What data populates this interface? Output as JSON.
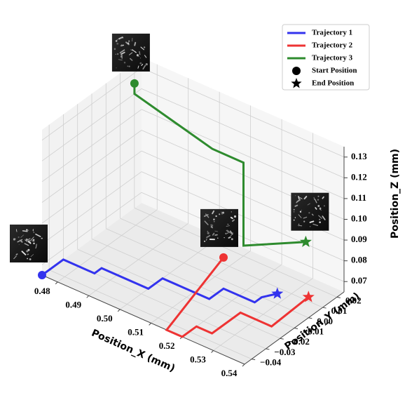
{
  "chart_data": {
    "type": "line",
    "dimensions": 3,
    "xlabel": "Position_X (mm)",
    "ylabel": "Position_Y (mm)",
    "zlabel": "Position_Z (mm)",
    "xlim": [
      0.475,
      0.54
    ],
    "ylim": [
      -0.045,
      0.025
    ],
    "zlim": [
      0.065,
      0.135
    ],
    "x_ticks": [
      0.48,
      0.49,
      0.5,
      0.51,
      0.52,
      0.53,
      0.54
    ],
    "x_tick_labels": [
      "0.48",
      "0.49",
      "0.50",
      "0.51",
      "0.52",
      "0.53",
      "0.54"
    ],
    "y_ticks": [
      -0.04,
      -0.03,
      -0.02,
      -0.01,
      0.0,
      0.01,
      0.02
    ],
    "y_tick_labels": [
      "−0.04",
      "−0.03",
      "−0.02",
      "−0.01",
      "0.00",
      "0.01",
      "0.02"
    ],
    "z_ticks": [
      0.07,
      0.08,
      0.09,
      0.1,
      0.11,
      0.12,
      0.13
    ],
    "z_tick_labels": [
      "0.07",
      "0.08",
      "0.09",
      "0.10",
      "0.11",
      "0.12",
      "0.13"
    ],
    "grid": true,
    "legend_position": "top-right",
    "legend": [
      {
        "label": "Trajectory 1",
        "kind": "line",
        "color": "#3333ee"
      },
      {
        "label": "Trajectory 2",
        "kind": "line",
        "color": "#ee3333"
      },
      {
        "label": "Trajectory 3",
        "kind": "line",
        "color": "#2e8b2e"
      },
      {
        "label": "Start Position",
        "kind": "circle",
        "color": "#000000"
      },
      {
        "label": "End Position",
        "kind": "star",
        "color": "#000000"
      }
    ],
    "series": [
      {
        "name": "Trajectory 1",
        "color": "#3333ee",
        "x": [
          0.475,
          0.475,
          0.485,
          0.485,
          0.5,
          0.5,
          0.515,
          0.515,
          0.525,
          0.525,
          0.53
        ],
        "y": [
          -0.045,
          -0.03,
          -0.03,
          -0.025,
          -0.025,
          -0.015,
          -0.015,
          -0.005,
          -0.005,
          0.0,
          0.0
        ],
        "z": [
          0.065,
          0.065,
          0.065,
          0.065,
          0.065,
          0.065,
          0.065,
          0.065,
          0.065,
          0.065,
          0.07
        ]
      },
      {
        "name": "Trajectory 2",
        "color": "#ee3333",
        "x": [
          0.515,
          0.515,
          0.52,
          0.52,
          0.525,
          0.525,
          0.535,
          0.54
        ],
        "y": [
          -0.005,
          -0.045,
          -0.045,
          -0.035,
          -0.035,
          -0.015,
          -0.015,
          0.0
        ],
        "z": [
          0.08,
          0.065,
          0.065,
          0.065,
          0.065,
          0.065,
          0.065,
          0.075
        ]
      },
      {
        "name": "Trajectory 3",
        "color": "#2e8b2e",
        "x": [
          0.475,
          0.475,
          0.5,
          0.51,
          0.51,
          0.51,
          0.53
        ],
        "y": [
          0.02,
          0.02,
          0.02,
          0.02,
          0.02,
          0.02,
          0.02
        ],
        "z": [
          0.125,
          0.12,
          0.11,
          0.11,
          0.09,
          0.07,
          0.085
        ]
      }
    ]
  }
}
